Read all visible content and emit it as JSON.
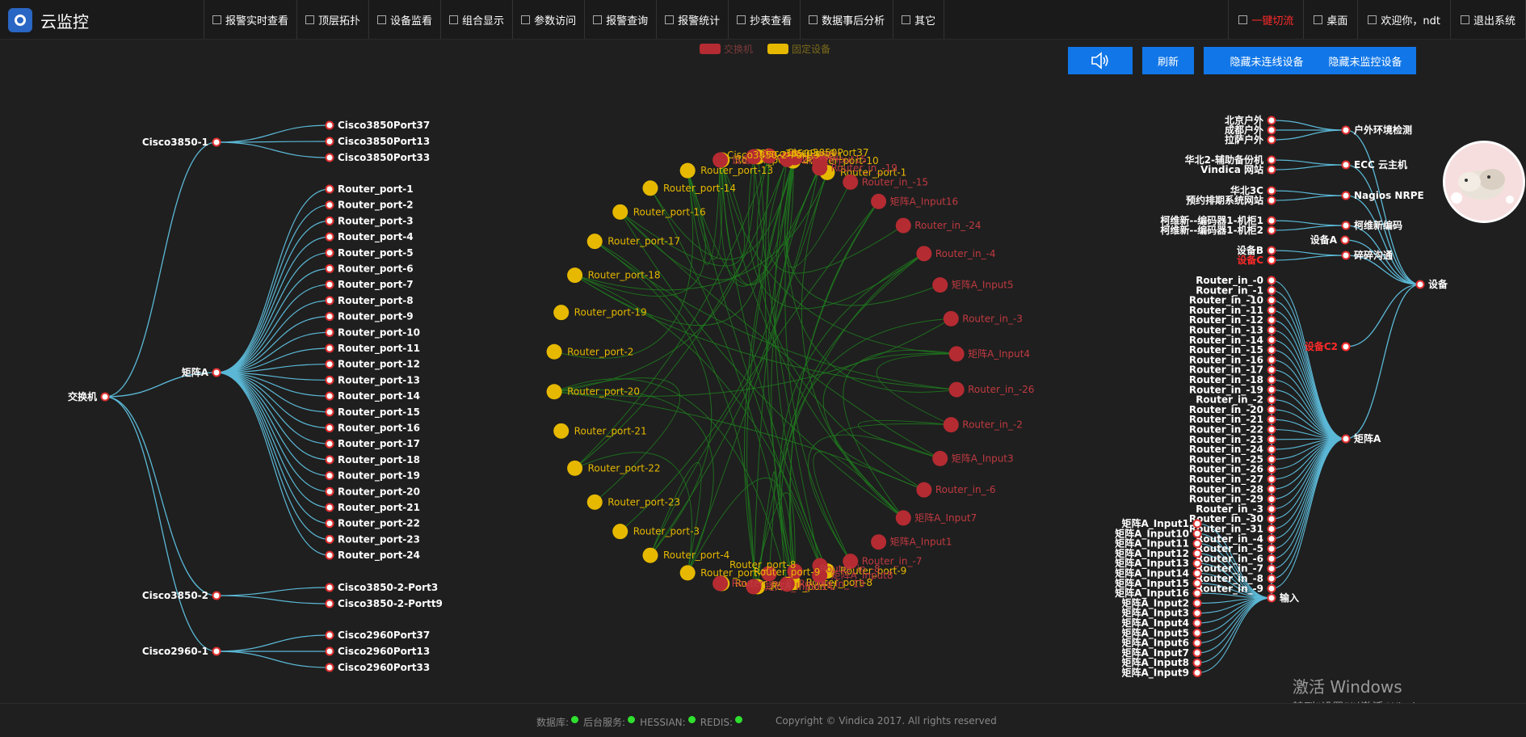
{
  "header": {
    "app_title": "云监控",
    "nav": [
      "报警实时查看",
      "顶层拓扑",
      "设备监看",
      "组合显示",
      "参数访问",
      "报警查询",
      "报警统计",
      "抄表查看",
      "数据事后分析",
      "其它"
    ],
    "right": {
      "switch": "一键切流",
      "desktop": "桌面",
      "welcome": "欢迎你，ndt",
      "logout": "退出系统"
    }
  },
  "legend": {
    "switch": "交换机",
    "fixed": "固定设备",
    "switch_color": "#b52b32",
    "fixed_color": "#e6b800"
  },
  "buttons": {
    "refresh": "刷新",
    "hide_unconnected": "隐藏未连线设备",
    "hide_unmonitored": "隐藏未监控设备"
  },
  "left_tree": {
    "root": "交换机",
    "groups": [
      {
        "name": "Cisco3850-1",
        "children": [
          "Cisco3850Port37",
          "Cisco3850Port13",
          "Cisco3850Port33"
        ]
      },
      {
        "name": "矩阵A",
        "children": [
          "Router_port-1",
          "Router_port-2",
          "Router_port-3",
          "Router_port-4",
          "Router_port-5",
          "Router_port-6",
          "Router_port-7",
          "Router_port-8",
          "Router_port-9",
          "Router_port-10",
          "Router_port-11",
          "Router_port-12",
          "Router_port-13",
          "Router_port-14",
          "Router_port-15",
          "Router_port-16",
          "Router_port-17",
          "Router_port-18",
          "Router_port-19",
          "Router_port-20",
          "Router_port-21",
          "Router_port-22",
          "Router_port-23",
          "Router_port-24"
        ]
      },
      {
        "name": "Cisco3850-2",
        "children": [
          "Cisco3850-2-Port3",
          "Cisco3850-2-Portt9"
        ]
      },
      {
        "name": "Cisco2960-1",
        "children": [
          "Cisco2960Port37",
          "Cisco2960Port13",
          "Cisco2960Port33"
        ]
      }
    ]
  },
  "circle": {
    "yellow": [
      "Router_port-1",
      "Router_port-10",
      "Router_port-11",
      "Router_port-12",
      "Router_port-13",
      "Router_port-14",
      "Router_port-16",
      "Router_port-17",
      "Router_port-18",
      "Router_port-19",
      "Router_port-2",
      "Router_port-20",
      "Router_port-21",
      "Router_port-22",
      "Router_port-23",
      "Router_port-3",
      "Router_port-4",
      "Router_port-5",
      "Router_port-6",
      "Router_port-7",
      "Router_port-8",
      "Router_port-9"
    ],
    "red_right": [
      "设备B",
      "Router_in_-14",
      "矩阵A_Input15",
      "Router_in_-19",
      "Router_in_-15",
      "矩阵A_Input16",
      "Router_in_-24",
      "Router_in_-4",
      "矩阵A_Input5",
      "Router_in_-3",
      "矩阵A_Input4",
      "Router_in_-26",
      "Router_in_-2",
      "矩阵A_Input3",
      "Router_in_-6",
      "矩阵A_Input7",
      "矩阵A_Input1",
      "Router_in_-7",
      "矩阵A_Input8",
      "Router_in_-13",
      "矩阵A_Input14",
      "Router_in_-8"
    ],
    "top_labels": [
      "Cisco3850Port9",
      "Cisco3850-2-Portt9",
      "Cisco3850Port37",
      "a 网站"
    ],
    "bottom_labels": [
      "Router_port-8",
      "Router_port-9",
      "Router_in_-8"
    ]
  },
  "right_tree": {
    "root": "设备",
    "groups": [
      {
        "name": "户外环境检测",
        "children": [
          "北京户外",
          "成都户外",
          "拉萨户外"
        ]
      },
      {
        "name": "ECC 云主机",
        "children": [
          "华北2-辅助备份机",
          "Vindica 网站"
        ]
      },
      {
        "name": "Nagios NRPE",
        "children": [
          "华北3C",
          "预约排期系统网站"
        ]
      },
      {
        "name": "柯维新编码",
        "children": [
          "柯维新--编码器1-机柜1",
          "柯维新--编码器1-机柜2"
        ]
      },
      {
        "name": "设备A",
        "children": []
      },
      {
        "name": "碎碎沟通",
        "children": [
          "设备B",
          "设备C"
        ]
      },
      {
        "name": "设备C2",
        "children": []
      },
      {
        "name": "矩阵A",
        "children": []
      }
    ],
    "input_node": "输入",
    "router_in": [
      "Router_in_-0",
      "Router_in_-1",
      "Router_in_-10",
      "Router_in_-11",
      "Router_in_-12",
      "Router_in_-13",
      "Router_in_-14",
      "Router_in_-15",
      "Router_in_-16",
      "Router_in_-17",
      "Router_in_-18",
      "Router_in_-19",
      "Router_in_-2",
      "Router_in_-20",
      "Router_in_-21",
      "Router_in_-22",
      "Router_in_-23",
      "Router_in_-24",
      "Router_in_-25",
      "Router_in_-26",
      "Router_in_-27",
      "Router_in_-28",
      "Router_in_-29",
      "Router_in_-3",
      "Router_in_-30",
      "Router_in_-31",
      "Router_in_-4",
      "Router_in_-5",
      "Router_in_-6",
      "Router_in_-7",
      "Router_in_-8",
      "Router_in_-9"
    ],
    "matrix_inputs": [
      "矩阵A_Input1",
      "矩阵A_Input10",
      "矩阵A_Input11",
      "矩阵A_Input12",
      "矩阵A_Input13",
      "矩阵A_Input14",
      "矩阵A_Input15",
      "矩阵A_Input16",
      "矩阵A_Input2",
      "矩阵A_Input3",
      "矩阵A_Input4",
      "矩阵A_Input5",
      "矩阵A_Input6",
      "矩阵A_Input7",
      "矩阵A_Input8",
      "矩阵A_Input9"
    ]
  },
  "watermark": {
    "line1": "激活 Windows",
    "line2": "转到“设置”以激活 Windows。"
  },
  "footer": {
    "db": "数据库:",
    "backend": "后台服务:",
    "hessian": "HESSIAN:",
    "redis": "REDIS:",
    "copyright": "Copyright © Vindica 2017. All rights reserved"
  }
}
